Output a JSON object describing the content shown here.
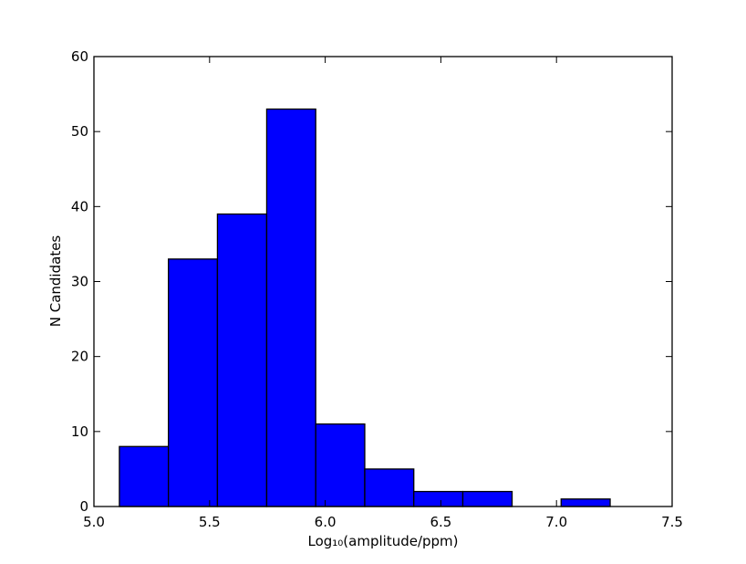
{
  "chart_data": {
    "type": "histogram",
    "x_label": "Log₁₀(amplitude/ppm)",
    "y_label": "N Candidates",
    "bins": [
      5.11,
      5.322,
      5.534,
      5.747,
      5.959,
      6.171,
      6.383,
      6.595,
      6.808,
      7.02,
      7.232
    ],
    "values": [
      8,
      33,
      39,
      53,
      11,
      5,
      2,
      2,
      0,
      1
    ],
    "color": "#0000ff",
    "xlim": [
      5.0,
      7.5
    ],
    "xticks": [
      {
        "value": 5.0,
        "label": "5.0"
      },
      5.5,
      {
        "value": 6.0,
        "label": "6.0"
      },
      6.5,
      {
        "value": 7.0,
        "label": "7.0"
      },
      7.5
    ],
    "ylim": [
      0,
      60
    ],
    "yticks": [
      0,
      10,
      20,
      30,
      40,
      50,
      60
    ],
    "grid": false
  }
}
